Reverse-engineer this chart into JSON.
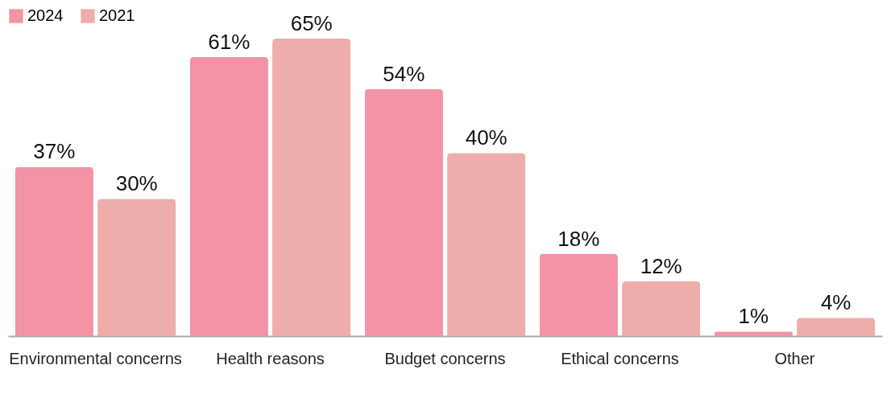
{
  "chart_data": {
    "type": "bar",
    "categories": [
      "Environmental concerns",
      "Health reasons",
      "Budget concerns",
      "Ethical concerns",
      "Other"
    ],
    "series": [
      {
        "name": "2024",
        "color": "#f393a5",
        "values": [
          37,
          61,
          54,
          18,
          1
        ],
        "value_labels": [
          "37%",
          "61%",
          "54%",
          "18%",
          "1%"
        ]
      },
      {
        "name": "2021",
        "color": "#edadab",
        "values": [
          30,
          65,
          40,
          12,
          4
        ],
        "value_labels": [
          "30%",
          "65%",
          "40%",
          "12%",
          "4%"
        ]
      }
    ],
    "legend": "top"
  }
}
